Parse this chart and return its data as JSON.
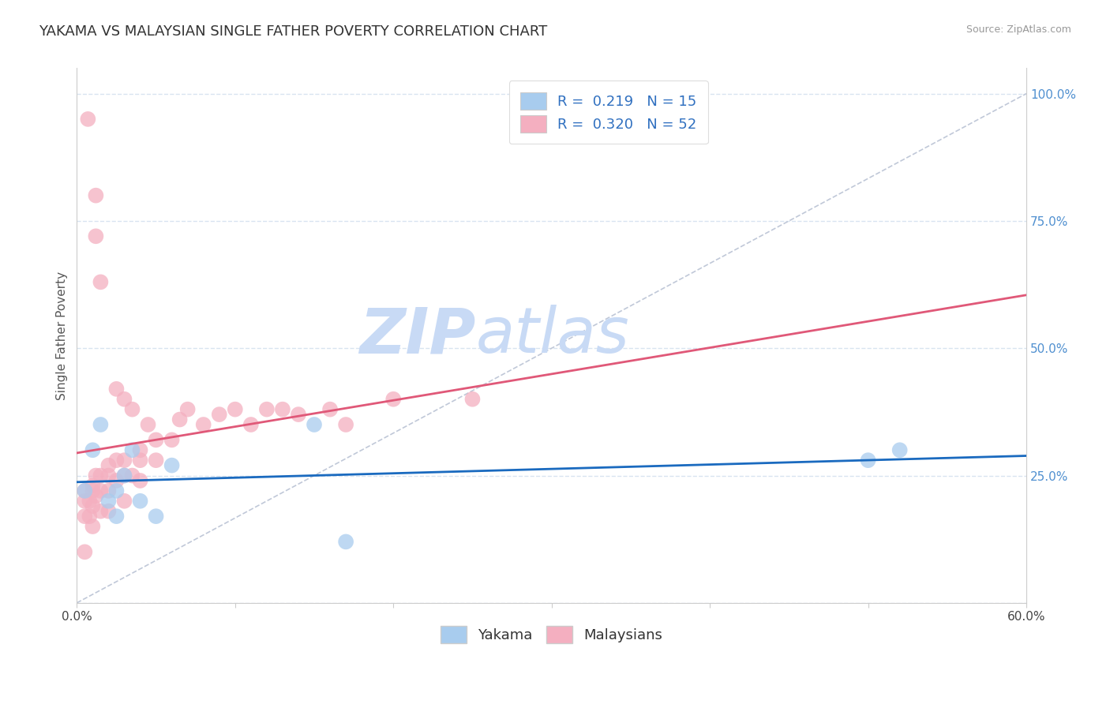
{
  "title": "YAKAMA VS MALAYSIAN SINGLE FATHER POVERTY CORRELATION CHART",
  "source_text": "Source: ZipAtlas.com",
  "ylabel": "Single Father Poverty",
  "xlim": [
    0.0,
    0.6
  ],
  "ylim": [
    0.0,
    1.05
  ],
  "yakama_R": 0.219,
  "yakama_N": 15,
  "malaysian_R": 0.32,
  "malaysian_N": 52,
  "yakama_color": "#a8ccee",
  "malaysian_color": "#f4afc0",
  "yakama_line_color": "#1a6abf",
  "malaysian_line_color": "#e05878",
  "grid_color": "#d8e4f0",
  "watermark_zip": "ZIP",
  "watermark_atlas": "atlas",
  "watermark_color": "#c8daf5",
  "background_color": "#ffffff",
  "title_fontsize": 13,
  "axis_label_fontsize": 11,
  "tick_fontsize": 11,
  "legend_fontsize": 13,
  "yakama_x": [
    0.005,
    0.01,
    0.015,
    0.02,
    0.025,
    0.025,
    0.03,
    0.035,
    0.04,
    0.05,
    0.06,
    0.15,
    0.17,
    0.5,
    0.52
  ],
  "yakama_y": [
    0.22,
    0.3,
    0.35,
    0.2,
    0.17,
    0.22,
    0.25,
    0.3,
    0.2,
    0.17,
    0.27,
    0.35,
    0.12,
    0.28,
    0.3
  ],
  "malaysian_x": [
    0.005,
    0.005,
    0.005,
    0.005,
    0.007,
    0.008,
    0.008,
    0.01,
    0.01,
    0.01,
    0.01,
    0.012,
    0.012,
    0.012,
    0.012,
    0.015,
    0.015,
    0.015,
    0.015,
    0.02,
    0.02,
    0.02,
    0.02,
    0.025,
    0.025,
    0.025,
    0.03,
    0.03,
    0.03,
    0.03,
    0.035,
    0.035,
    0.04,
    0.04,
    0.04,
    0.045,
    0.05,
    0.05,
    0.06,
    0.065,
    0.07,
    0.08,
    0.09,
    0.1,
    0.11,
    0.12,
    0.13,
    0.14,
    0.16,
    0.17,
    0.2,
    0.25
  ],
  "malaysian_y": [
    0.2,
    0.22,
    0.17,
    0.1,
    0.95,
    0.2,
    0.17,
    0.23,
    0.22,
    0.19,
    0.15,
    0.8,
    0.72,
    0.25,
    0.21,
    0.63,
    0.25,
    0.22,
    0.18,
    0.27,
    0.25,
    0.22,
    0.18,
    0.42,
    0.28,
    0.24,
    0.4,
    0.28,
    0.25,
    0.2,
    0.38,
    0.25,
    0.3,
    0.28,
    0.24,
    0.35,
    0.32,
    0.28,
    0.32,
    0.36,
    0.38,
    0.35,
    0.37,
    0.38,
    0.35,
    0.38,
    0.38,
    0.37,
    0.38,
    0.35,
    0.4,
    0.4
  ]
}
